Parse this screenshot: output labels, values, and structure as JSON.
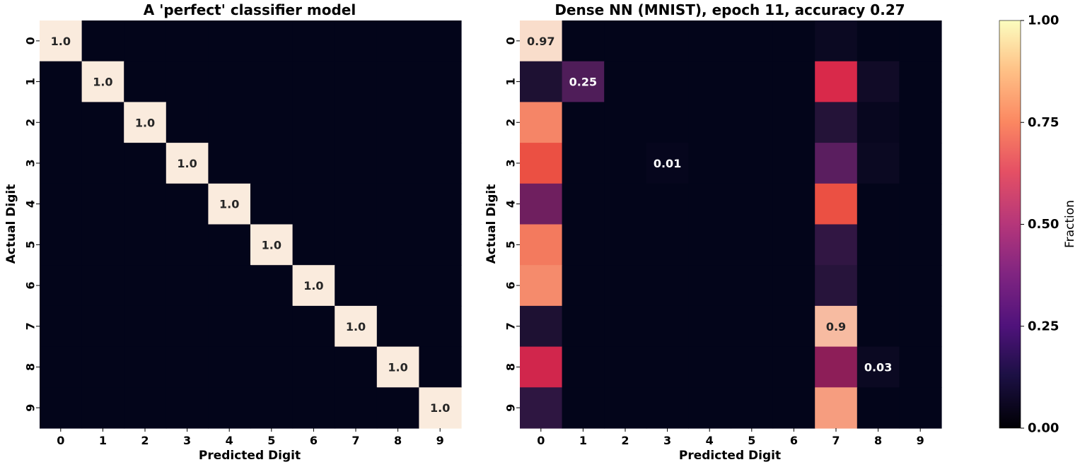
{
  "chart_data": [
    {
      "type": "heatmap",
      "title": "A 'perfect' classifier model",
      "xlabel": "Predicted Digit",
      "ylabel": "Actual Digit",
      "xticks": [
        "0",
        "1",
        "2",
        "3",
        "4",
        "5",
        "6",
        "7",
        "8",
        "9"
      ],
      "yticks": [
        "0",
        "1",
        "2",
        "3",
        "4",
        "5",
        "6",
        "7",
        "8",
        "9"
      ],
      "values": [
        [
          1.0,
          0,
          0,
          0,
          0,
          0,
          0,
          0,
          0,
          0
        ],
        [
          0,
          1.0,
          0,
          0,
          0,
          0,
          0,
          0,
          0,
          0
        ],
        [
          0,
          0,
          1.0,
          0,
          0,
          0,
          0,
          0,
          0,
          0
        ],
        [
          0,
          0,
          0,
          1.0,
          0,
          0,
          0,
          0,
          0,
          0
        ],
        [
          0,
          0,
          0,
          0,
          1.0,
          0,
          0,
          0,
          0,
          0
        ],
        [
          0,
          0,
          0,
          0,
          0,
          1.0,
          0,
          0,
          0,
          0
        ],
        [
          0,
          0,
          0,
          0,
          0,
          0,
          1.0,
          0,
          0,
          0
        ],
        [
          0,
          0,
          0,
          0,
          0,
          0,
          0,
          1.0,
          0,
          0
        ],
        [
          0,
          0,
          0,
          0,
          0,
          0,
          0,
          0,
          1.0,
          0
        ],
        [
          0,
          0,
          0,
          0,
          0,
          0,
          0,
          0,
          0,
          1.0
        ]
      ],
      "annotations": [
        {
          "row": 0,
          "col": 0,
          "text": "1.0"
        },
        {
          "row": 1,
          "col": 1,
          "text": "1.0"
        },
        {
          "row": 2,
          "col": 2,
          "text": "1.0"
        },
        {
          "row": 3,
          "col": 3,
          "text": "1.0"
        },
        {
          "row": 4,
          "col": 4,
          "text": "1.0"
        },
        {
          "row": 5,
          "col": 5,
          "text": "1.0"
        },
        {
          "row": 6,
          "col": 6,
          "text": "1.0"
        },
        {
          "row": 7,
          "col": 7,
          "text": "1.0"
        },
        {
          "row": 8,
          "col": 8,
          "text": "1.0"
        },
        {
          "row": 9,
          "col": 9,
          "text": "1.0"
        }
      ],
      "colormap": "rocket",
      "colorbar": false
    },
    {
      "type": "heatmap",
      "title": "Dense NN (MNIST), epoch 11, accuracy 0.27",
      "xlabel": "Predicted Digit",
      "ylabel": "Actual Digit",
      "xticks": [
        "0",
        "1",
        "2",
        "3",
        "4",
        "5",
        "6",
        "7",
        "8",
        "9"
      ],
      "yticks": [
        "0",
        "1",
        "2",
        "3",
        "4",
        "5",
        "6",
        "7",
        "8",
        "9"
      ],
      "values": [
        [
          0.97,
          0,
          0,
          0,
          0,
          0,
          0,
          0.03,
          0,
          0
        ],
        [
          0.1,
          0.25,
          0,
          0,
          0,
          0,
          0,
          0.6,
          0.05,
          0
        ],
        [
          0.78,
          0,
          0,
          0,
          0,
          0,
          0,
          0.12,
          0.02,
          0
        ],
        [
          0.68,
          0,
          0,
          0.01,
          0,
          0,
          0,
          0.28,
          0.03,
          0
        ],
        [
          0.34,
          0,
          0,
          0,
          0,
          0,
          0,
          0.68,
          0,
          0
        ],
        [
          0.76,
          0,
          0,
          0,
          0,
          0,
          0,
          0.16,
          0,
          0
        ],
        [
          0.79,
          0,
          0,
          0,
          0,
          0,
          0,
          0.13,
          0,
          0
        ],
        [
          0.1,
          0,
          0,
          0,
          0,
          0,
          0,
          0.9,
          0,
          0
        ],
        [
          0.58,
          0,
          0,
          0,
          0,
          0,
          0,
          0.42,
          0.03,
          0
        ],
        [
          0.15,
          0,
          0,
          0,
          0,
          0,
          0,
          0.83,
          0,
          0
        ]
      ],
      "annotations": [
        {
          "row": 0,
          "col": 0,
          "text": "0.97"
        },
        {
          "row": 1,
          "col": 1,
          "text": "0.25"
        },
        {
          "row": 3,
          "col": 3,
          "text": "0.01"
        },
        {
          "row": 7,
          "col": 7,
          "text": "0.9"
        },
        {
          "row": 8,
          "col": 8,
          "text": "0.03"
        }
      ],
      "colormap": "rocket",
      "colorbar": true
    }
  ],
  "colorbar": {
    "label": "Fraction",
    "range": [
      0,
      1
    ],
    "ticks": [
      "0.00",
      "0.25",
      "0.50",
      "0.75",
      "1.00"
    ]
  },
  "colormap_stops": [
    {
      "v": 0.0,
      "c": "#03051a"
    },
    {
      "v": 0.1,
      "c": "#1e1133"
    },
    {
      "v": 0.2,
      "c": "#3d1a4e"
    },
    {
      "v": 0.3,
      "c": "#611f63"
    },
    {
      "v": 0.4,
      "c": "#841e5a"
    },
    {
      "v": 0.5,
      "c": "#b01c52"
    },
    {
      "v": 0.6,
      "c": "#d9294a"
    },
    {
      "v": 0.7,
      "c": "#ef5a41"
    },
    {
      "v": 0.8,
      "c": "#f69071"
    },
    {
      "v": 0.9,
      "c": "#f7bba1"
    },
    {
      "v": 1.0,
      "c": "#faebdd"
    }
  ],
  "colorbar_stops": [
    {
      "v": 0.0,
      "c": "#000004"
    },
    {
      "v": 0.13,
      "c": "#1c1044"
    },
    {
      "v": 0.25,
      "c": "#4f127b"
    },
    {
      "v": 0.38,
      "c": "#812581"
    },
    {
      "v": 0.5,
      "c": "#b5367a"
    },
    {
      "v": 0.63,
      "c": "#e55064"
    },
    {
      "v": 0.75,
      "c": "#fb8761"
    },
    {
      "v": 0.88,
      "c": "#fec287"
    },
    {
      "v": 1.0,
      "c": "#fcfdbf"
    }
  ],
  "text_colors": {
    "light": "#ffffff",
    "dark": "#262626"
  }
}
